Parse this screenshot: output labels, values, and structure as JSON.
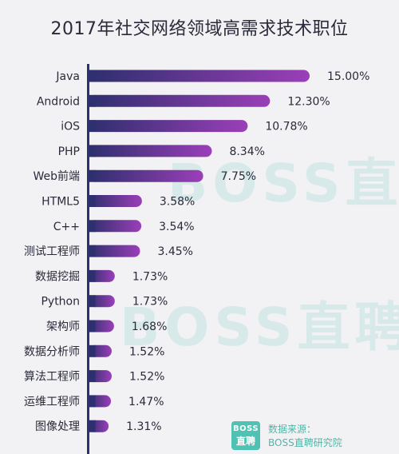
{
  "chart_data": {
    "type": "bar",
    "orientation": "horizontal",
    "title": "2017年社交网络领域高需求技术职位",
    "categories": [
      "Java",
      "Android",
      "iOS",
      "PHP",
      "Web前端",
      "HTML5",
      "C++",
      "测试工程师",
      "数据挖掘",
      "Python",
      "架构师",
      "数据分析师",
      "算法工程师",
      "运维工程师",
      "图像处理"
    ],
    "values": [
      15.0,
      12.3,
      10.78,
      8.34,
      7.75,
      3.58,
      3.54,
      3.45,
      1.73,
      1.73,
      1.68,
      1.52,
      1.52,
      1.47,
      1.31
    ],
    "value_labels": [
      "15.00%",
      "12.30%",
      "10.78%",
      "8.34%",
      "7.75%",
      "3.58%",
      "3.54%",
      "3.45%",
      "1.73%",
      "1.73%",
      "1.68%",
      "1.52%",
      "1.52%",
      "1.47%",
      "1.31%"
    ],
    "unit": "%",
    "xlim": [
      0,
      15
    ],
    "grid": false,
    "bar_gradient": [
      "#2e2f6e",
      "#9b3fb8"
    ],
    "axis_color": "#2e2f6e"
  },
  "watermark": {
    "line1": "BOSS直聘",
    "line2": "BOSS直聘"
  },
  "badge": {
    "top": "BOSS",
    "bottom": "直聘",
    "color": "#4fc2b3"
  },
  "source": {
    "label": "数据来源：",
    "name": "BOSS直聘研究院"
  }
}
